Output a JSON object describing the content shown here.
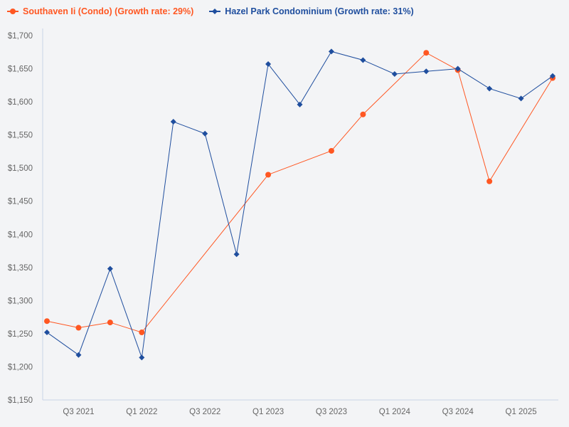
{
  "chart_data": {
    "type": "line",
    "title": "",
    "xlabel": "",
    "ylabel": "",
    "categories": [
      "Q2 2021",
      "Q3 2021",
      "Q4 2021",
      "Q1 2022",
      "Q2 2022",
      "Q3 2022",
      "Q4 2022",
      "Q1 2023",
      "Q2 2023",
      "Q3 2023",
      "Q4 2023",
      "Q1 2024",
      "Q2 2024",
      "Q3 2024",
      "Q4 2024",
      "Q1 2025",
      "Q2 2025"
    ],
    "x_tick_labels": [
      "Q3 2021",
      "Q1 2022",
      "Q3 2022",
      "Q1 2023",
      "Q3 2023",
      "Q1 2024",
      "Q3 2024",
      "Q1 2025"
    ],
    "ylim": [
      1150,
      1700
    ],
    "y_ticks": [
      "$1,150",
      "$1,200",
      "$1,250",
      "$1,300",
      "$1,350",
      "$1,400",
      "$1,450",
      "$1,500",
      "$1,550",
      "$1,600",
      "$1,650",
      "$1,700"
    ],
    "grid": false,
    "legend_position": "top-left",
    "series": [
      {
        "name": "Southaven Ii (Condo) (Growth rate: 29%)",
        "color": "#ff5722",
        "marker": "circle",
        "values": [
          1269,
          1259,
          1267,
          1252,
          null,
          null,
          null,
          1490,
          null,
          1526,
          1581,
          null,
          1674,
          1648,
          1480,
          null,
          1636
        ]
      },
      {
        "name": "Hazel Park Condominium (Growth rate: 31%)",
        "color": "#1f4e9e",
        "marker": "diamond",
        "values": [
          1252,
          1218,
          1348,
          1214,
          1570,
          1552,
          1370,
          1657,
          1596,
          1676,
          1663,
          1642,
          1646,
          1650,
          1620,
          1605,
          1639
        ]
      }
    ]
  }
}
